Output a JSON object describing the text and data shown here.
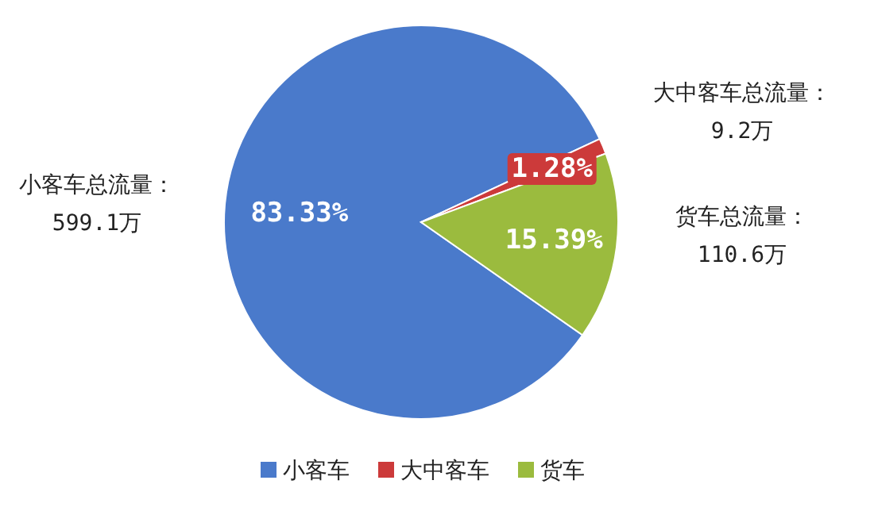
{
  "chart_data": {
    "type": "pie",
    "categories": [
      "小客车",
      "大中客车",
      "货车"
    ],
    "values": [
      83.33,
      1.28,
      15.39
    ],
    "value_labels": [
      "83.33%",
      "1.28%",
      "15.39%"
    ],
    "colors": [
      "#4a7acb",
      "#cc3a3a",
      "#9bbb3e"
    ],
    "annotations": [
      "小客车总流量：\n599.1万",
      "大中客车总流量：\n9.2万",
      "货车总流量：\n110.6万"
    ],
    "legend": "bottom"
  }
}
